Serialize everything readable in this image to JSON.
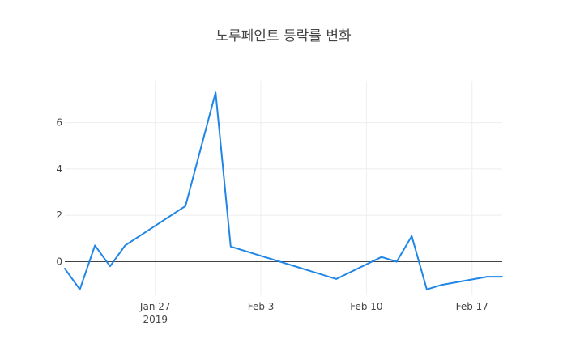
{
  "chart_data": {
    "type": "line",
    "title": "노루페인트 등락률 변화",
    "xlabel": "",
    "ylabel": "",
    "x": [
      "2019-01-21",
      "2019-01-22",
      "2019-01-23",
      "2019-01-24",
      "2019-01-25",
      "2019-01-29",
      "2019-01-31",
      "2019-02-01",
      "2019-02-08",
      "2019-02-11",
      "2019-02-12",
      "2019-02-13",
      "2019-02-14",
      "2019-02-15",
      "2019-02-18",
      "2019-02-19"
    ],
    "series": [
      {
        "color": "#1f86e8",
        "values": [
          -0.3,
          -1.2,
          0.7,
          -0.2,
          0.7,
          2.4,
          7.3,
          0.65,
          -0.75,
          0.2,
          0.0,
          1.1,
          -1.2,
          -1.0,
          -0.65,
          -0.65
        ]
      }
    ],
    "xlim": [
      "2019-01-21",
      "2019-02-19"
    ],
    "ylim": [
      -1.45,
      7.8
    ],
    "x_ticks": [
      {
        "date": "2019-01-27",
        "label": "Jan 27",
        "sublabel": "2019"
      },
      {
        "date": "2019-02-03",
        "label": "Feb 3",
        "sublabel": ""
      },
      {
        "date": "2019-02-10",
        "label": "Feb 10",
        "sublabel": ""
      },
      {
        "date": "2019-02-17",
        "label": "Feb 17",
        "sublabel": ""
      }
    ],
    "y_ticks": [
      {
        "value": 0,
        "label": "0"
      },
      {
        "value": 2,
        "label": "2"
      },
      {
        "value": 4,
        "label": "4"
      },
      {
        "value": 6,
        "label": "6"
      }
    ],
    "grid": true,
    "legend": false
  }
}
